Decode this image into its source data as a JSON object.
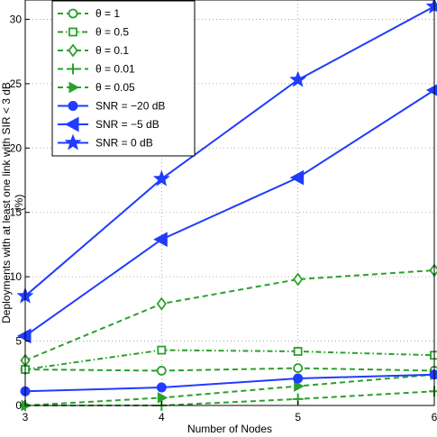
{
  "chart_data": {
    "type": "line",
    "xlabel": "Number of Nodes",
    "ylabel_line1": "Deployments with at least one link with SIR < 3 dB",
    "ylabel_line2": "(%)",
    "x": [
      3,
      4,
      5,
      6
    ],
    "xlim": [
      3,
      6
    ],
    "ylim": [
      0,
      31.5
    ],
    "xticks": [
      3,
      4,
      5,
      6
    ],
    "yticks": [
      0,
      5,
      10,
      15,
      20,
      25,
      30
    ],
    "grid": true,
    "legend_position": "top-left",
    "series": [
      {
        "name": "θ = 1",
        "values": [
          2.8,
          2.7,
          2.9,
          2.7
        ],
        "color": "#2ca02c",
        "dash": "dashed",
        "marker": "circle"
      },
      {
        "name": "θ = 0.5",
        "values": [
          2.8,
          4.3,
          4.2,
          3.9
        ],
        "color": "#2ca02c",
        "dash": "dashdot",
        "marker": "square"
      },
      {
        "name": "θ = 0.1",
        "values": [
          3.5,
          7.9,
          9.8,
          10.5
        ],
        "color": "#2ca02c",
        "dash": "dashed",
        "marker": "diamond"
      },
      {
        "name": "θ = 0.01",
        "values": [
          0.0,
          0.0,
          0.5,
          1.1
        ],
        "color": "#2ca02c",
        "dash": "dashed",
        "marker": "plus"
      },
      {
        "name": "θ = 0.05",
        "values": [
          0.0,
          0.6,
          1.5,
          2.4
        ],
        "color": "#2ca02c",
        "dash": "dashed",
        "marker": "triangle-right"
      },
      {
        "name": "SNR = −20 dB",
        "values": [
          1.1,
          1.4,
          2.1,
          2.4
        ],
        "color": "#1f3cff",
        "dash": "solid",
        "marker": "circle-filled"
      },
      {
        "name": "SNR = −5 dB",
        "values": [
          5.4,
          12.9,
          17.7,
          24.5
        ],
        "color": "#1f3cff",
        "dash": "solid",
        "marker": "triangle-left-filled"
      },
      {
        "name": "SNR = 0 dB",
        "values": [
          8.5,
          17.6,
          25.3,
          31.0
        ],
        "color": "#1f3cff",
        "dash": "solid",
        "marker": "star-filled"
      }
    ]
  }
}
